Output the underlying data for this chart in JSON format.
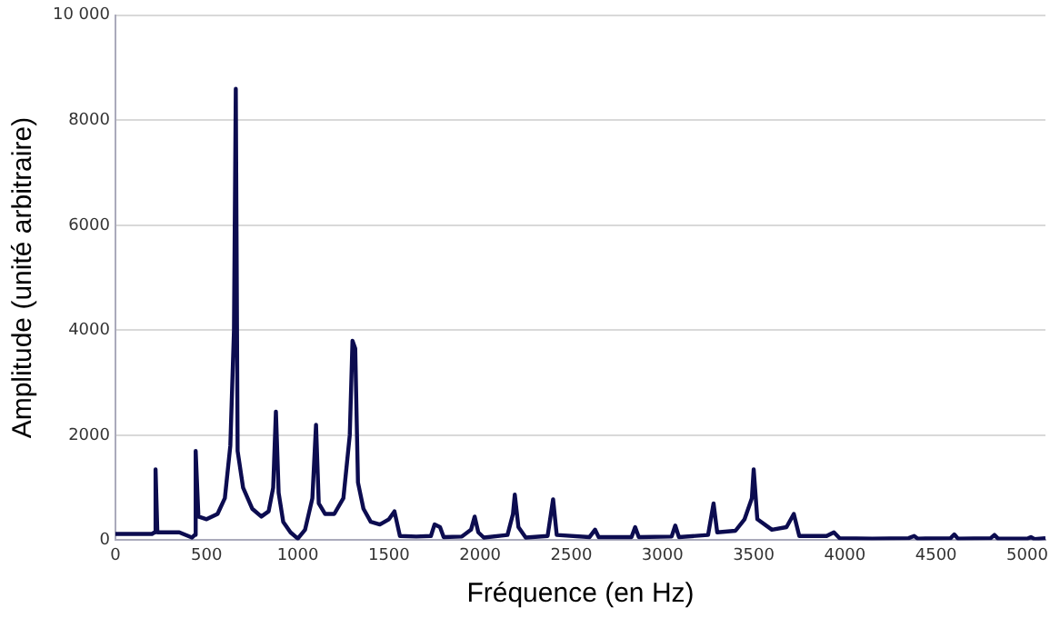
{
  "chart_data": {
    "type": "line",
    "xlabel": "Fréquence (en Hz)",
    "ylabel": "Amplitude (unité arbitraire)",
    "x": [
      0,
      200,
      215,
      220,
      230,
      350,
      420,
      435,
      440,
      455,
      500,
      560,
      600,
      630,
      650,
      660,
      670,
      700,
      750,
      800,
      840,
      865,
      880,
      895,
      920,
      960,
      1000,
      1040,
      1080,
      1100,
      1115,
      1150,
      1200,
      1250,
      1285,
      1300,
      1315,
      1330,
      1360,
      1400,
      1450,
      1500,
      1530,
      1560,
      1650,
      1730,
      1750,
      1780,
      1800,
      1900,
      1950,
      1970,
      1990,
      2020,
      2150,
      2180,
      2190,
      2210,
      2250,
      2370,
      2400,
      2420,
      2600,
      2630,
      2650,
      2830,
      2850,
      2870,
      3050,
      3070,
      3090,
      3250,
      3280,
      3300,
      3400,
      3450,
      3490,
      3500,
      3520,
      3600,
      3680,
      3720,
      3750,
      3900,
      3940,
      3970,
      4150,
      4350,
      4380,
      4400,
      4580,
      4600,
      4620,
      4800,
      4820,
      4840,
      5000,
      5020,
      5040,
      5100
    ],
    "series": [
      {
        "color": "#0c0c50",
        "values": [
          120,
          120,
          150,
          1350,
          150,
          150,
          50,
          100,
          1700,
          450,
          400,
          500,
          800,
          1800,
          4000,
          8600,
          1700,
          1000,
          600,
          450,
          550,
          1000,
          2450,
          900,
          350,
          150,
          30,
          200,
          800,
          2200,
          700,
          500,
          500,
          800,
          2000,
          3800,
          3650,
          1100,
          600,
          350,
          300,
          400,
          550,
          80,
          70,
          80,
          300,
          250,
          60,
          70,
          200,
          450,
          150,
          50,
          100,
          500,
          870,
          250,
          50,
          80,
          780,
          100,
          60,
          200,
          60,
          60,
          250,
          60,
          70,
          280,
          60,
          100,
          700,
          150,
          180,
          400,
          800,
          1350,
          400,
          200,
          250,
          500,
          80,
          80,
          150,
          40,
          30,
          40,
          80,
          30,
          40,
          110,
          30,
          40,
          100,
          30,
          30,
          60,
          20,
          40
        ]
      }
    ],
    "xlim": [
      0,
      5100
    ],
    "xticks": [
      0,
      500,
      1000,
      1500,
      2000,
      2500,
      3000,
      3500,
      4000,
      4500,
      5000
    ],
    "ylim": [
      0,
      10000
    ],
    "yticks": [
      0,
      2000,
      4000,
      6000,
      8000,
      {
        "value": 10000,
        "label": "10 000"
      }
    ],
    "grid": "y",
    "legend": false,
    "marker": "none",
    "line_style": "solid"
  }
}
